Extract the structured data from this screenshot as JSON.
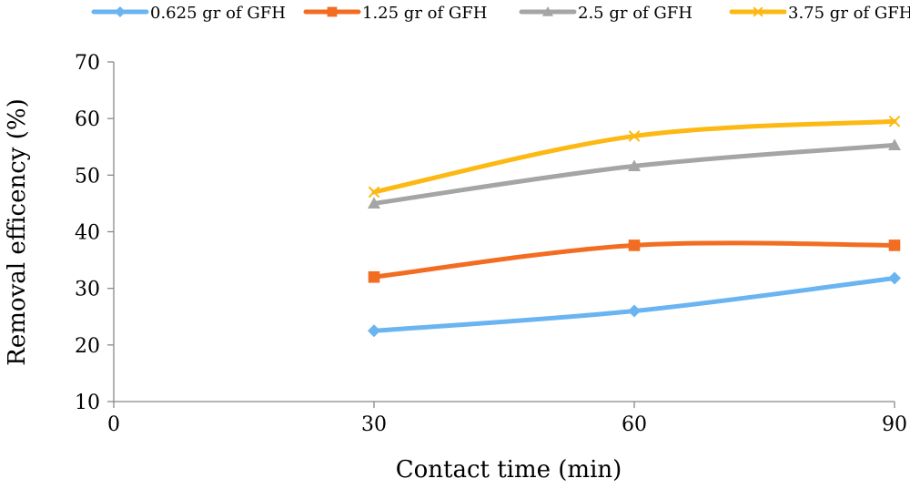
{
  "chart_data": {
    "type": "line",
    "title": "",
    "xlabel": "Contact time (min)",
    "ylabel": "Removal efficency (%)",
    "x": [
      30,
      60,
      90
    ],
    "xlim": [
      0,
      90
    ],
    "ylim": [
      10,
      70
    ],
    "x_ticks": [
      "0",
      "30",
      "60",
      "90"
    ],
    "y_ticks": [
      "10",
      "20",
      "30",
      "40",
      "50",
      "60",
      "70"
    ],
    "grid": false,
    "legend_position": "top",
    "smooth": true,
    "series": [
      {
        "name": "0.625 gr of GFH",
        "values": [
          22.5,
          26.0,
          31.8
        ],
        "color": "#6AB4F1",
        "marker": "diamond"
      },
      {
        "name": "1.25 gr of GFH",
        "values": [
          32.0,
          37.6,
          37.6
        ],
        "color": "#F26D21",
        "marker": "square"
      },
      {
        "name": "2.5 gr of GFH",
        "values": [
          45.0,
          51.6,
          55.3
        ],
        "color": "#A5A5A5",
        "marker": "triangle"
      },
      {
        "name": "3.75 gr of GFH",
        "values": [
          47.0,
          56.9,
          59.5
        ],
        "color": "#FCB813",
        "marker": "x"
      }
    ]
  }
}
